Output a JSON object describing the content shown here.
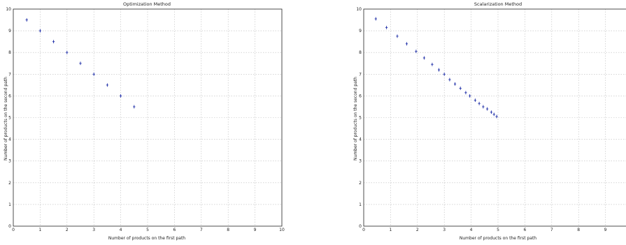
{
  "chart_data": [
    {
      "type": "scatter",
      "title": "Optimization Method",
      "xlabel": "Number of products on the first path",
      "ylabel": "Number of products on the second path",
      "xlim": [
        0,
        10
      ],
      "ylim": [
        0,
        10
      ],
      "x_ticks": [
        0,
        1,
        2,
        3,
        4,
        5,
        6,
        7,
        8,
        9,
        10
      ],
      "y_ticks": [
        0,
        1,
        2,
        3,
        4,
        5,
        6,
        7,
        8,
        9,
        10
      ],
      "grid": true,
      "marker": "plus",
      "color": "#1f2fa8",
      "x": [
        0.5,
        1.0,
        1.5,
        2.0,
        2.5,
        3.0,
        3.5,
        4.0,
        4.5
      ],
      "y": [
        9.5,
        9.0,
        8.5,
        8.0,
        7.5,
        7.0,
        6.5,
        6.0,
        5.5
      ]
    },
    {
      "type": "scatter",
      "title": "Scalarization Method",
      "xlabel": "Number of products on the first path",
      "ylabel": "Number of products on the second path",
      "xlim": [
        0,
        10
      ],
      "ylim": [
        0,
        10
      ],
      "x_ticks": [
        0,
        1,
        2,
        3,
        4,
        5,
        6,
        7,
        8,
        9
      ],
      "y_ticks": [
        0,
        1,
        2,
        3,
        4,
        5,
        6,
        7,
        8,
        9,
        10
      ],
      "grid": true,
      "marker": "plus",
      "color": "#1f2fa8",
      "x": [
        0.45,
        0.85,
        1.25,
        1.6,
        1.95,
        2.25,
        2.55,
        2.8,
        3.0,
        3.2,
        3.4,
        3.6,
        3.8,
        3.95,
        4.15,
        4.3,
        4.45,
        4.6,
        4.75,
        4.85,
        4.95
      ],
      "y": [
        9.55,
        9.15,
        8.75,
        8.4,
        8.05,
        7.75,
        7.45,
        7.2,
        7.0,
        6.75,
        6.55,
        6.35,
        6.15,
        6.0,
        5.8,
        5.65,
        5.5,
        5.4,
        5.25,
        5.15,
        5.05
      ]
    }
  ]
}
